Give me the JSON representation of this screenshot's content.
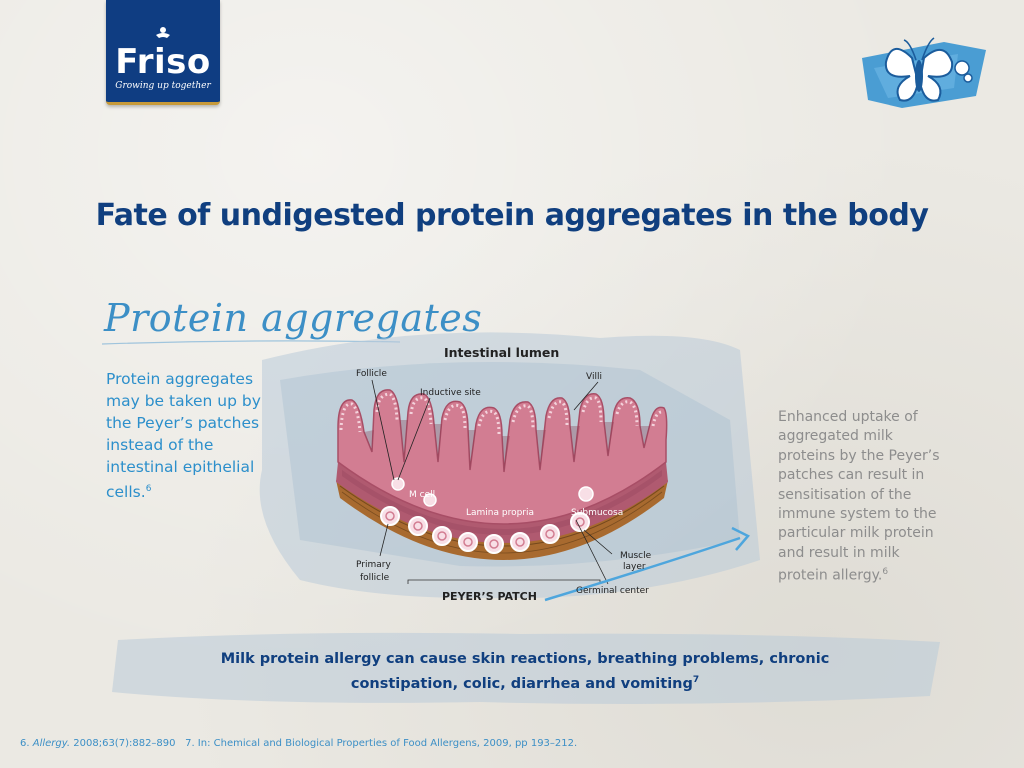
{
  "brand": {
    "name": "Friso",
    "tagline": "Growing up together",
    "colors": {
      "navy": "#0f3d82",
      "gold": "#c79a3a",
      "accent_blue": "#3c8fc6"
    }
  },
  "slide": {
    "title": "Fate of undigested protein aggregates in the body",
    "handwritten_heading": "Protein aggregates",
    "left_text": "Protein aggregates may be taken up by the Peyer’s patches instead of the intestinal epithelial cells.",
    "left_ref": "6",
    "right_text": "Enhanced uptake of aggregated milk proteins by the Peyer’s patches can result in sensitisation of the immune system to the particular milk protein and result in milk protein allergy.",
    "right_ref": "6",
    "bottom_text_line1": "Milk protein allergy can cause skin reactions, breathing problems, chronic",
    "bottom_text_line2": "constipation, colic, diarrhea and vomiting",
    "bottom_ref": "7"
  },
  "diagram": {
    "lumen_label": "Intestinal lumen",
    "labels": {
      "follicle": "Follicle",
      "inductive_site": "Inductive site",
      "villi": "Villi",
      "m_cell": "M cell",
      "lamina_propria": "Lamina propria",
      "submucosa": "Submucosa",
      "muscle_layer_1": "Muscle",
      "muscle_layer_2": "layer",
      "primary_follicle_1": "Primary",
      "primary_follicle_2": "follicle",
      "germinal_center": "Germinal center",
      "peyers_patch": "PEYER’S PATCH"
    },
    "colors": {
      "tissue": "#d27d92",
      "tissue_dark": "#a84e66",
      "muscle": "#a86a2f",
      "cell_ring": "#f4d3dc"
    }
  },
  "footnotes": {
    "ref6_num": "6.",
    "ref6_journal": "Allergy.",
    "ref6_rest": "2008;63(7):882–890",
    "ref7": "7. In: Chemical and Biological Properties of Food Allergens, 2009, pp 193–212."
  }
}
